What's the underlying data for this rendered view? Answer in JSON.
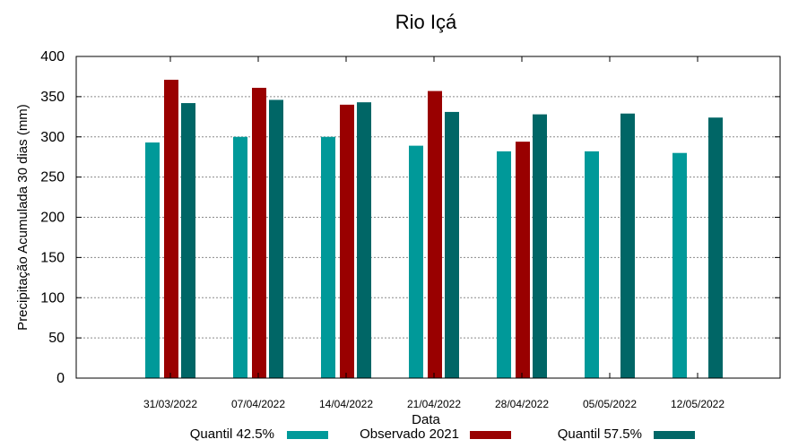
{
  "chart_data": {
    "type": "bar",
    "title": "Rio Içá",
    "xlabel": "Data",
    "ylabel": "Precipitação Acumulada 30 dias (mm)",
    "ylim": [
      0,
      400
    ],
    "yticks": [
      0,
      50,
      100,
      150,
      200,
      250,
      300,
      350,
      400
    ],
    "grid": true,
    "legend_position": "bottom",
    "categories": [
      "31/03/2022",
      "07/04/2022",
      "14/04/2022",
      "21/04/2022",
      "28/04/2022",
      "05/05/2022",
      "12/05/2022"
    ],
    "series": [
      {
        "name": "Quantil 42.5%",
        "color": "#009999",
        "values": [
          293,
          300,
          300,
          289,
          282,
          282,
          280
        ]
      },
      {
        "name": "Observado 2021",
        "color": "#990000",
        "values": [
          371,
          361,
          340,
          357,
          294,
          null,
          null
        ]
      },
      {
        "name": "Quantil 57.5%",
        "color": "#006666",
        "values": [
          342,
          346,
          343,
          331,
          328,
          329,
          324
        ]
      }
    ]
  }
}
